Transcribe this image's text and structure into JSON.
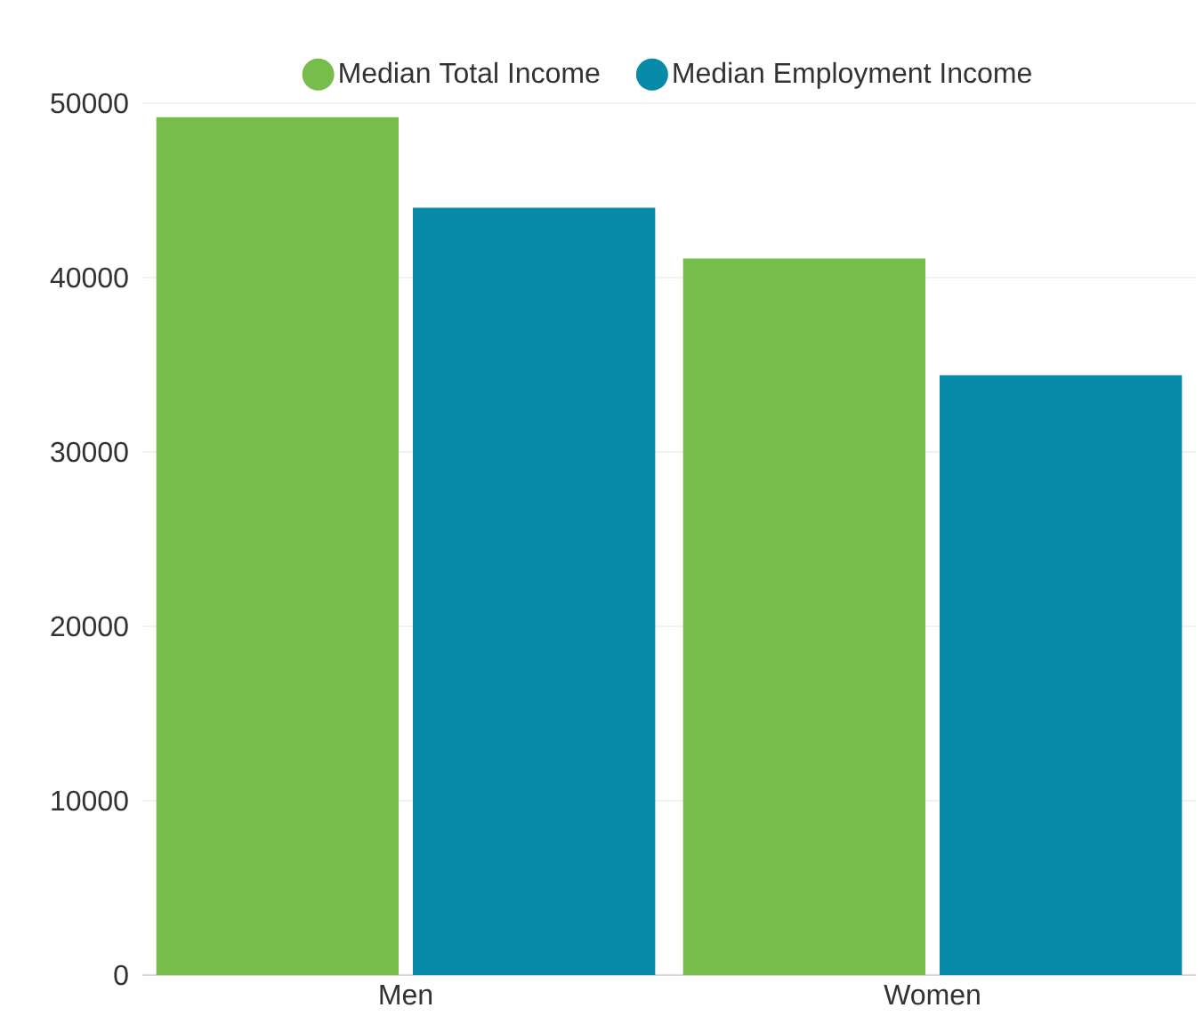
{
  "chart_data": {
    "type": "bar",
    "categories": [
      "Men",
      "Women"
    ],
    "series": [
      {
        "name": "Median Total Income",
        "color": "#77bd4b",
        "values": [
          49200,
          41100
        ]
      },
      {
        "name": "Median Employment Income",
        "color": "#068aa8",
        "values": [
          44000,
          34400
        ]
      }
    ],
    "ylim": [
      0,
      50000
    ],
    "yticks": [
      0,
      10000,
      20000,
      30000,
      40000,
      50000
    ],
    "grid": "y",
    "legend": "top"
  }
}
